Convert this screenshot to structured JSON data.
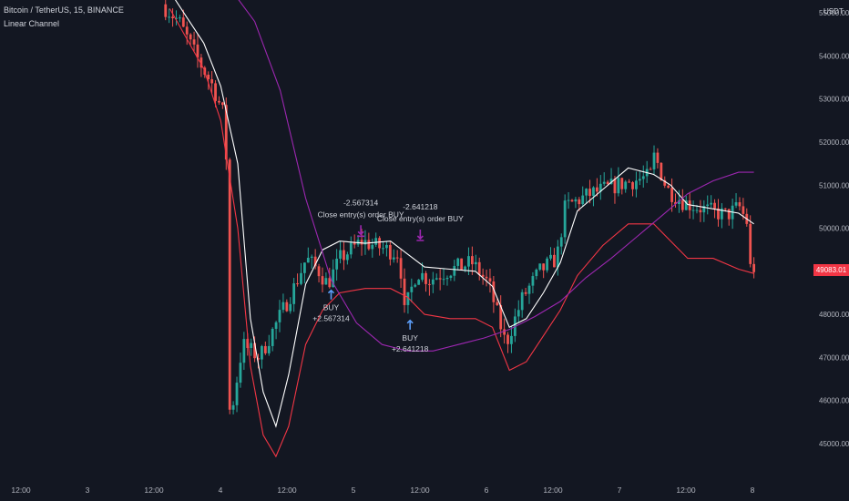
{
  "header": {
    "symbol_title": "Bitcoin / TetherUS, 15, BINANCE",
    "indicator": "Linear Channel"
  },
  "price_axis": {
    "currency": "USDT",
    "current_price": "49083.01"
  },
  "colors": {
    "background": "#131722",
    "up_candle": "#26a69a",
    "down_candle": "#ef5350",
    "channel_mid": "#ffffff",
    "channel_lower": "#f23645",
    "slow_ma": "#9c27b0",
    "sell_marker": "#9c27b0",
    "buy_marker": "#5b9cf6",
    "price_tag": "#f23645"
  },
  "chart_data": {
    "type": "candlestick",
    "title": "Bitcoin / TetherUS, 15, BINANCE",
    "ylim": [
      44300,
      55300
    ],
    "y_ticks": [
      "55000.00",
      "54000.00",
      "53000.00",
      "52000.00",
      "51000.00",
      "50000.00",
      "48000.00",
      "47000.00",
      "46000.00",
      "45000.00"
    ],
    "x_ticks": [
      "12:00",
      "3",
      "12:00",
      "4",
      "12:00",
      "5",
      "12:00",
      "6",
      "12:00",
      "7",
      "12:00",
      "8"
    ],
    "grid": false,
    "price_path": [
      [
        0.195,
        55200
      ],
      [
        0.215,
        54800
      ],
      [
        0.235,
        54000
      ],
      [
        0.255,
        53300
      ],
      [
        0.27,
        52500
      ],
      [
        0.275,
        45500
      ],
      [
        0.29,
        47300
      ],
      [
        0.31,
        47000
      ],
      [
        0.33,
        47800
      ],
      [
        0.35,
        48600
      ],
      [
        0.365,
        49300
      ],
      [
        0.38,
        49000
      ],
      [
        0.39,
        48700
      ],
      [
        0.405,
        49300
      ],
      [
        0.43,
        49700
      ],
      [
        0.46,
        49500
      ],
      [
        0.475,
        49400
      ],
      [
        0.48,
        48000
      ],
      [
        0.495,
        49000
      ],
      [
        0.51,
        48800
      ],
      [
        0.53,
        49000
      ],
      [
        0.56,
        49200
      ],
      [
        0.58,
        48700
      ],
      [
        0.6,
        47300
      ],
      [
        0.62,
        48400
      ],
      [
        0.64,
        49000
      ],
      [
        0.66,
        49300
      ],
      [
        0.67,
        50500
      ],
      [
        0.7,
        50800
      ],
      [
        0.73,
        51000
      ],
      [
        0.77,
        51200
      ],
      [
        0.775,
        51700
      ],
      [
        0.79,
        50900
      ],
      [
        0.81,
        50600
      ],
      [
        0.84,
        50400
      ],
      [
        0.86,
        50300
      ],
      [
        0.875,
        50500
      ],
      [
        0.885,
        50100
      ],
      [
        0.888,
        49083
      ]
    ],
    "series": [
      {
        "name": "Linear Channel",
        "points": [
          [
            0.2,
            55500
          ],
          [
            0.22,
            54900
          ],
          [
            0.24,
            54300
          ],
          [
            0.26,
            53300
          ],
          [
            0.28,
            51500
          ],
          [
            0.295,
            47900
          ],
          [
            0.31,
            46200
          ],
          [
            0.325,
            45400
          ],
          [
            0.34,
            46600
          ],
          [
            0.36,
            48700
          ],
          [
            0.38,
            49500
          ],
          [
            0.4,
            49700
          ],
          [
            0.43,
            49650
          ],
          [
            0.46,
            49700
          ],
          [
            0.48,
            49400
          ],
          [
            0.5,
            49100
          ],
          [
            0.53,
            49050
          ],
          [
            0.56,
            49000
          ],
          [
            0.58,
            48650
          ],
          [
            0.6,
            47700
          ],
          [
            0.62,
            47900
          ],
          [
            0.64,
            48500
          ],
          [
            0.66,
            49200
          ],
          [
            0.68,
            50400
          ],
          [
            0.71,
            50900
          ],
          [
            0.74,
            51400
          ],
          [
            0.77,
            51250
          ],
          [
            0.79,
            51000
          ],
          [
            0.81,
            50550
          ],
          [
            0.84,
            50450
          ],
          [
            0.87,
            50350
          ],
          [
            0.888,
            50100
          ]
        ]
      },
      {
        "points": [
          [
            0.2,
            55100
          ],
          [
            0.22,
            54400
          ],
          [
            0.24,
            53700
          ],
          [
            0.26,
            52500
          ],
          [
            0.28,
            50000
          ],
          [
            0.295,
            46800
          ],
          [
            0.31,
            45200
          ],
          [
            0.325,
            44700
          ],
          [
            0.34,
            45400
          ],
          [
            0.36,
            47300
          ],
          [
            0.38,
            48100
          ],
          [
            0.4,
            48500
          ],
          [
            0.43,
            48600
          ],
          [
            0.46,
            48600
          ],
          [
            0.48,
            48400
          ],
          [
            0.5,
            48000
          ],
          [
            0.53,
            47900
          ],
          [
            0.56,
            47900
          ],
          [
            0.58,
            47700
          ],
          [
            0.6,
            46700
          ],
          [
            0.62,
            46900
          ],
          [
            0.64,
            47500
          ],
          [
            0.66,
            48100
          ],
          [
            0.68,
            48900
          ],
          [
            0.71,
            49600
          ],
          [
            0.74,
            50100
          ],
          [
            0.77,
            50100
          ],
          [
            0.79,
            49700
          ],
          [
            0.81,
            49300
          ],
          [
            0.84,
            49300
          ],
          [
            0.87,
            49050
          ],
          [
            0.888,
            48950
          ]
        ]
      },
      {
        "points": [
          [
            0.27,
            55600
          ],
          [
            0.3,
            54800
          ],
          [
            0.33,
            53200
          ],
          [
            0.36,
            50700
          ],
          [
            0.39,
            48800
          ],
          [
            0.42,
            47800
          ],
          [
            0.45,
            47300
          ],
          [
            0.48,
            47150
          ],
          [
            0.51,
            47150
          ],
          [
            0.54,
            47300
          ],
          [
            0.57,
            47450
          ],
          [
            0.6,
            47650
          ],
          [
            0.63,
            47950
          ],
          [
            0.66,
            48300
          ],
          [
            0.69,
            48850
          ],
          [
            0.72,
            49300
          ],
          [
            0.75,
            49800
          ],
          [
            0.78,
            50300
          ],
          [
            0.81,
            50800
          ],
          [
            0.84,
            51100
          ],
          [
            0.87,
            51300
          ],
          [
            0.888,
            51300
          ]
        ]
      }
    ],
    "annotations": [
      {
        "kind": "sell",
        "value": "-2.567314",
        "label": "Close entry(s) order BUY",
        "x": 0.425,
        "y": 49900
      },
      {
        "kind": "sell",
        "value": "-2.641218",
        "label": "Close entry(s) order BUY",
        "x": 0.495,
        "y": 49800
      },
      {
        "kind": "buy",
        "label": "BUY",
        "value": "+2.567314",
        "x": 0.39,
        "y": 48600
      },
      {
        "kind": "buy",
        "label": "BUY",
        "value": "+2.641218",
        "x": 0.483,
        "y": 47900
      }
    ]
  }
}
